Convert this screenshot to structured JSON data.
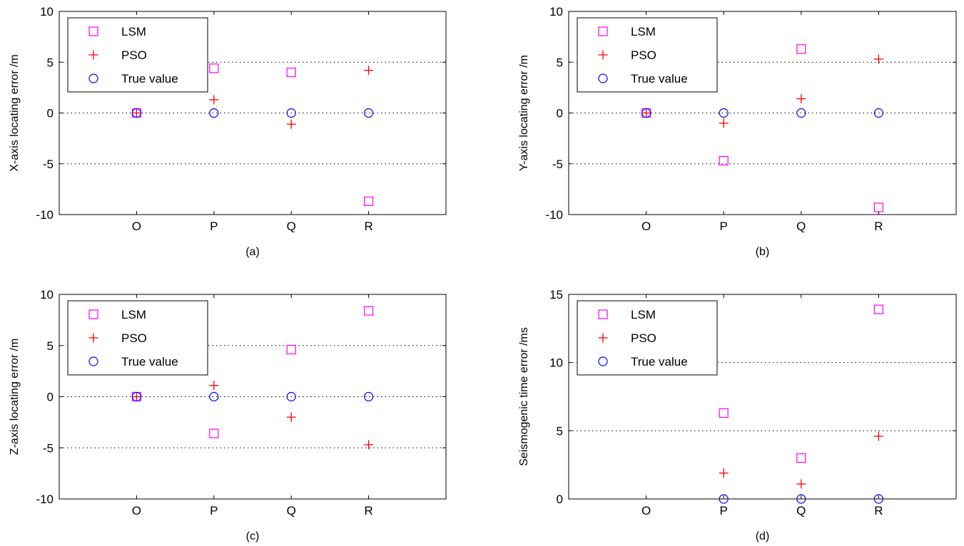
{
  "colors": {
    "lsm": "#ff00ff",
    "pso": "#ff0000",
    "true_value": "#0000ff",
    "axes": "#000000",
    "grid": "#000000"
  },
  "chart_data": [
    {
      "type": "scatter",
      "caption": "(a)",
      "xlabel": "",
      "ylabel": "X-axis locating error /m",
      "categories": [
        "O",
        "P",
        "Q",
        "R"
      ],
      "xlim": [
        0,
        5
      ],
      "ylim": [
        -10,
        10
      ],
      "yticks": [
        -10,
        -5,
        0,
        5,
        10
      ],
      "grid_y": [
        -5,
        0,
        5
      ],
      "legend": "top-left",
      "series": [
        {
          "name": "LSM",
          "marker": "square",
          "values": [
            0,
            4.4,
            4.0,
            -8.7
          ]
        },
        {
          "name": "PSO",
          "marker": "plus",
          "values": [
            0,
            1.3,
            -1.1,
            4.2
          ]
        },
        {
          "name": "True value",
          "marker": "circle",
          "values": [
            0,
            0,
            0,
            0
          ]
        }
      ]
    },
    {
      "type": "scatter",
      "caption": "(b)",
      "xlabel": "",
      "ylabel": "Y-axis locating error /m",
      "categories": [
        "O",
        "P",
        "Q",
        "R"
      ],
      "xlim": [
        0,
        5
      ],
      "ylim": [
        -10,
        10
      ],
      "yticks": [
        -10,
        -5,
        0,
        5,
        10
      ],
      "grid_y": [
        -5,
        0,
        5
      ],
      "legend": "top-left",
      "series": [
        {
          "name": "LSM",
          "marker": "square",
          "values": [
            0,
            -4.7,
            6.3,
            -9.3
          ]
        },
        {
          "name": "PSO",
          "marker": "plus",
          "values": [
            0,
            -1.0,
            1.4,
            5.3
          ]
        },
        {
          "name": "True value",
          "marker": "circle",
          "values": [
            0,
            0,
            0,
            0
          ]
        }
      ]
    },
    {
      "type": "scatter",
      "caption": "(c)",
      "xlabel": "",
      "ylabel": "Z-axis locating error /m",
      "categories": [
        "O",
        "P",
        "Q",
        "R"
      ],
      "xlim": [
        0,
        5
      ],
      "ylim": [
        -10,
        10
      ],
      "yticks": [
        -10,
        -5,
        0,
        5,
        10
      ],
      "grid_y": [
        -5,
        0,
        5
      ],
      "legend": "top-left",
      "series": [
        {
          "name": "LSM",
          "marker": "square",
          "values": [
            0,
            -3.6,
            4.6,
            8.4
          ]
        },
        {
          "name": "PSO",
          "marker": "plus",
          "values": [
            0,
            1.1,
            -2.0,
            -4.7
          ]
        },
        {
          "name": "True value",
          "marker": "circle",
          "values": [
            0,
            0,
            0,
            0
          ]
        }
      ]
    },
    {
      "type": "scatter",
      "caption": "(d)",
      "xlabel": "",
      "ylabel": "Seismogenic time error /ms",
      "categories": [
        "O",
        "P",
        "Q",
        "R"
      ],
      "xlim": [
        0,
        5
      ],
      "ylim": [
        0,
        15
      ],
      "yticks": [
        0,
        5,
        10,
        15
      ],
      "grid_y": [
        5,
        10
      ],
      "legend": "top-left",
      "series": [
        {
          "name": "LSM",
          "marker": "square",
          "values": [
            null,
            6.3,
            3.0,
            13.9
          ]
        },
        {
          "name": "PSO",
          "marker": "plus",
          "values": [
            null,
            1.9,
            1.1,
            4.6
          ]
        },
        {
          "name": "True value",
          "marker": "circle",
          "values": [
            null,
            0,
            0,
            0
          ]
        }
      ]
    }
  ]
}
